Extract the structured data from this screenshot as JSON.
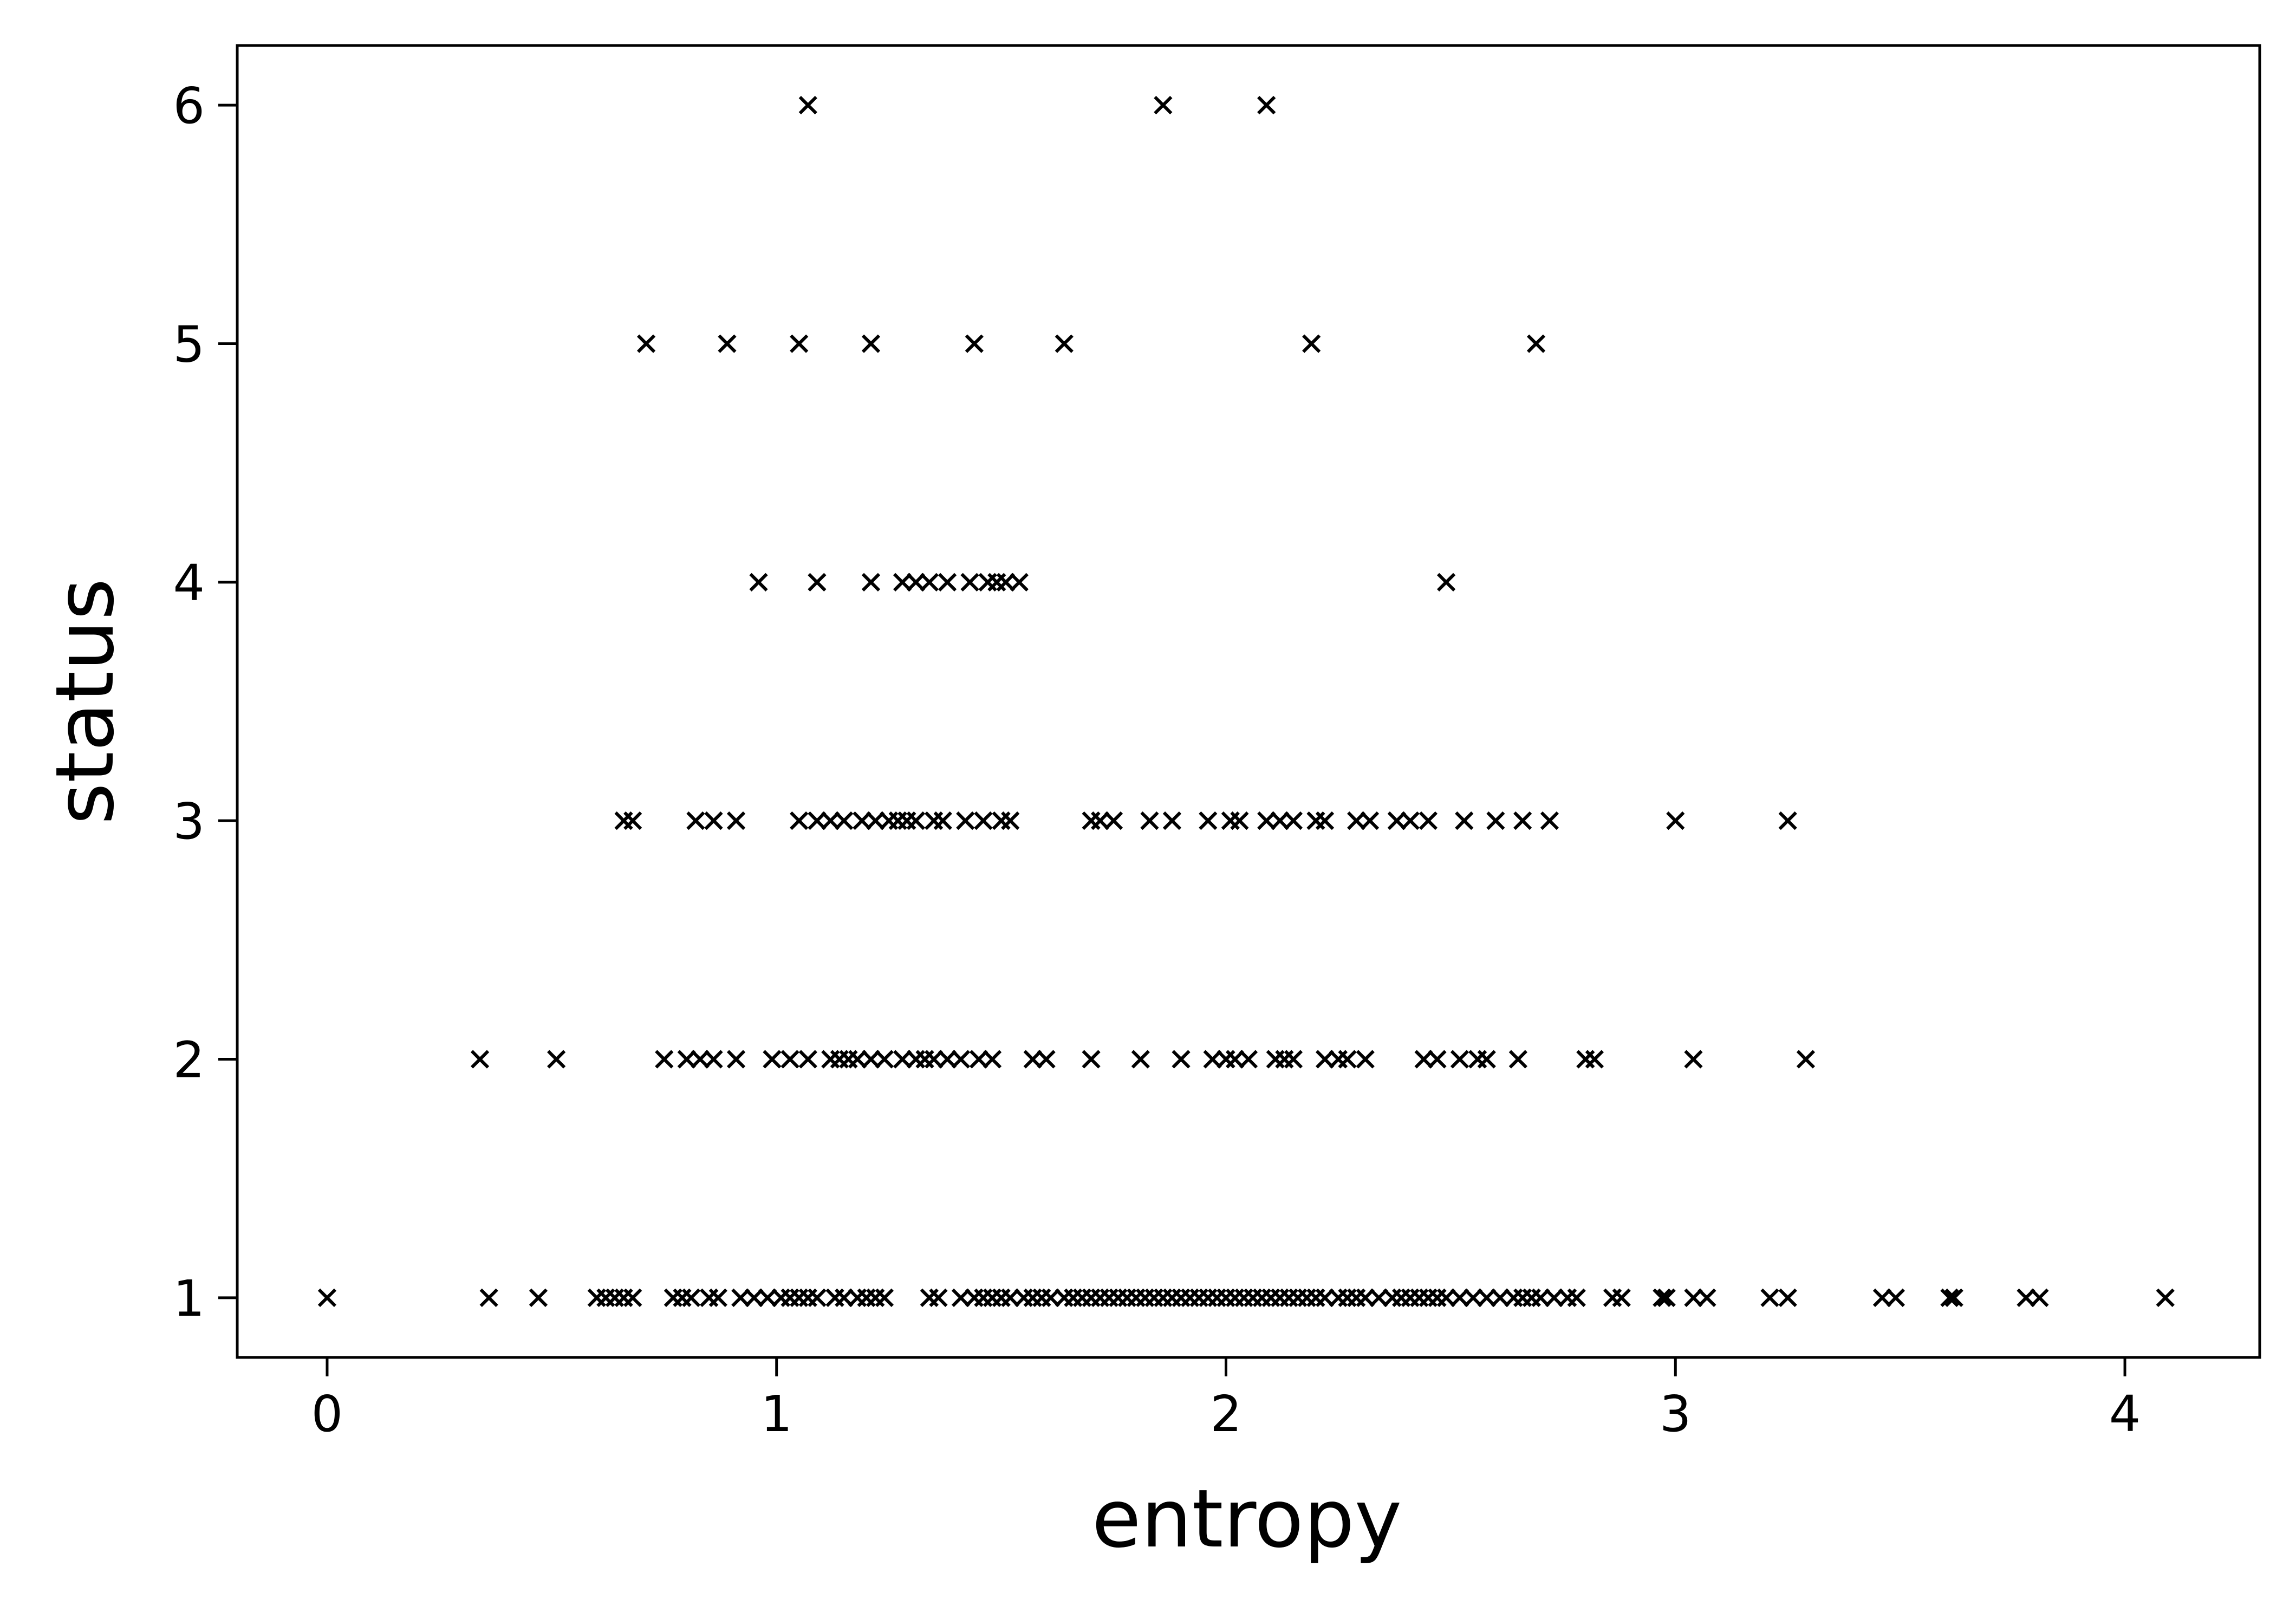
{
  "chart_data": {
    "type": "scatter",
    "title": "",
    "xlabel": "entropy",
    "ylabel": "status",
    "xlim": [
      -0.2,
      4.3
    ],
    "ylim": [
      0.75,
      6.25
    ],
    "xticks": [
      0,
      1,
      2,
      3,
      4
    ],
    "yticks": [
      1,
      2,
      3,
      4,
      5,
      6
    ],
    "grid": false,
    "legend": "none",
    "marker": "x",
    "color": "#000000",
    "points": [
      {
        "x": 1.07,
        "y": 6
      },
      {
        "x": 1.86,
        "y": 6
      },
      {
        "x": 2.09,
        "y": 6
      },
      {
        "x": 0.71,
        "y": 5
      },
      {
        "x": 0.89,
        "y": 5
      },
      {
        "x": 1.05,
        "y": 5
      },
      {
        "x": 1.21,
        "y": 5
      },
      {
        "x": 1.44,
        "y": 5
      },
      {
        "x": 1.64,
        "y": 5
      },
      {
        "x": 2.19,
        "y": 5
      },
      {
        "x": 2.69,
        "y": 5
      },
      {
        "x": 0.96,
        "y": 4
      },
      {
        "x": 1.09,
        "y": 4
      },
      {
        "x": 1.21,
        "y": 4
      },
      {
        "x": 1.28,
        "y": 4
      },
      {
        "x": 1.31,
        "y": 4
      },
      {
        "x": 1.34,
        "y": 4
      },
      {
        "x": 1.38,
        "y": 4
      },
      {
        "x": 1.43,
        "y": 4
      },
      {
        "x": 1.47,
        "y": 4
      },
      {
        "x": 1.49,
        "y": 4
      },
      {
        "x": 1.51,
        "y": 4
      },
      {
        "x": 1.54,
        "y": 4
      },
      {
        "x": 2.49,
        "y": 4
      },
      {
        "x": 0.66,
        "y": 3
      },
      {
        "x": 0.68,
        "y": 3
      },
      {
        "x": 0.82,
        "y": 3
      },
      {
        "x": 0.86,
        "y": 3
      },
      {
        "x": 0.91,
        "y": 3
      },
      {
        "x": 1.05,
        "y": 3
      },
      {
        "x": 1.09,
        "y": 3
      },
      {
        "x": 1.12,
        "y": 3
      },
      {
        "x": 1.15,
        "y": 3
      },
      {
        "x": 1.19,
        "y": 3
      },
      {
        "x": 1.22,
        "y": 3
      },
      {
        "x": 1.25,
        "y": 3
      },
      {
        "x": 1.27,
        "y": 3
      },
      {
        "x": 1.29,
        "y": 3
      },
      {
        "x": 1.31,
        "y": 3
      },
      {
        "x": 1.35,
        "y": 3
      },
      {
        "x": 1.37,
        "y": 3
      },
      {
        "x": 1.42,
        "y": 3
      },
      {
        "x": 1.46,
        "y": 3
      },
      {
        "x": 1.5,
        "y": 3
      },
      {
        "x": 1.52,
        "y": 3
      },
      {
        "x": 1.7,
        "y": 3
      },
      {
        "x": 1.72,
        "y": 3
      },
      {
        "x": 1.75,
        "y": 3
      },
      {
        "x": 1.83,
        "y": 3
      },
      {
        "x": 1.88,
        "y": 3
      },
      {
        "x": 1.96,
        "y": 3
      },
      {
        "x": 2.01,
        "y": 3
      },
      {
        "x": 2.03,
        "y": 3
      },
      {
        "x": 2.09,
        "y": 3
      },
      {
        "x": 2.12,
        "y": 3
      },
      {
        "x": 2.15,
        "y": 3
      },
      {
        "x": 2.22,
        "y": 3
      },
      {
        "x": 2.2,
        "y": 3
      },
      {
        "x": 2.29,
        "y": 3
      },
      {
        "x": 2.32,
        "y": 3
      },
      {
        "x": 2.38,
        "y": 3
      },
      {
        "x": 2.41,
        "y": 3
      },
      {
        "x": 2.45,
        "y": 3
      },
      {
        "x": 2.53,
        "y": 3
      },
      {
        "x": 2.6,
        "y": 3
      },
      {
        "x": 2.66,
        "y": 3
      },
      {
        "x": 2.72,
        "y": 3
      },
      {
        "x": 3.0,
        "y": 3
      },
      {
        "x": 3.25,
        "y": 3
      },
      {
        "x": 0.34,
        "y": 2
      },
      {
        "x": 0.51,
        "y": 2
      },
      {
        "x": 0.75,
        "y": 2
      },
      {
        "x": 0.8,
        "y": 2
      },
      {
        "x": 0.83,
        "y": 2
      },
      {
        "x": 0.86,
        "y": 2
      },
      {
        "x": 0.91,
        "y": 2
      },
      {
        "x": 0.99,
        "y": 2
      },
      {
        "x": 1.03,
        "y": 2
      },
      {
        "x": 1.07,
        "y": 2
      },
      {
        "x": 1.12,
        "y": 2
      },
      {
        "x": 1.14,
        "y": 2
      },
      {
        "x": 1.16,
        "y": 2
      },
      {
        "x": 1.18,
        "y": 2
      },
      {
        "x": 1.21,
        "y": 2
      },
      {
        "x": 1.24,
        "y": 2
      },
      {
        "x": 1.28,
        "y": 2
      },
      {
        "x": 1.31,
        "y": 2
      },
      {
        "x": 1.33,
        "y": 2
      },
      {
        "x": 1.35,
        "y": 2
      },
      {
        "x": 1.38,
        "y": 2
      },
      {
        "x": 1.41,
        "y": 2
      },
      {
        "x": 1.45,
        "y": 2
      },
      {
        "x": 1.48,
        "y": 2
      },
      {
        "x": 1.57,
        "y": 2
      },
      {
        "x": 1.6,
        "y": 2
      },
      {
        "x": 1.7,
        "y": 2
      },
      {
        "x": 1.81,
        "y": 2
      },
      {
        "x": 1.9,
        "y": 2
      },
      {
        "x": 1.97,
        "y": 2
      },
      {
        "x": 2.0,
        "y": 2
      },
      {
        "x": 2.02,
        "y": 2
      },
      {
        "x": 2.05,
        "y": 2
      },
      {
        "x": 2.11,
        "y": 2
      },
      {
        "x": 2.13,
        "y": 2
      },
      {
        "x": 2.15,
        "y": 2
      },
      {
        "x": 2.22,
        "y": 2
      },
      {
        "x": 2.25,
        "y": 2
      },
      {
        "x": 2.27,
        "y": 2
      },
      {
        "x": 2.31,
        "y": 2
      },
      {
        "x": 2.44,
        "y": 2
      },
      {
        "x": 2.47,
        "y": 2
      },
      {
        "x": 2.52,
        "y": 2
      },
      {
        "x": 2.56,
        "y": 2
      },
      {
        "x": 2.58,
        "y": 2
      },
      {
        "x": 2.65,
        "y": 2
      },
      {
        "x": 2.8,
        "y": 2
      },
      {
        "x": 2.82,
        "y": 2
      },
      {
        "x": 3.04,
        "y": 2
      },
      {
        "x": 3.29,
        "y": 2
      },
      {
        "x": 0.0,
        "y": 1
      },
      {
        "x": 0.36,
        "y": 1
      },
      {
        "x": 0.47,
        "y": 1
      },
      {
        "x": 0.6,
        "y": 1
      },
      {
        "x": 0.62,
        "y": 1
      },
      {
        "x": 0.64,
        "y": 1
      },
      {
        "x": 0.66,
        "y": 1
      },
      {
        "x": 0.68,
        "y": 1
      },
      {
        "x": 0.77,
        "y": 1
      },
      {
        "x": 0.79,
        "y": 1
      },
      {
        "x": 0.81,
        "y": 1
      },
      {
        "x": 0.85,
        "y": 1
      },
      {
        "x": 0.87,
        "y": 1
      },
      {
        "x": 0.92,
        "y": 1
      },
      {
        "x": 0.95,
        "y": 1
      },
      {
        "x": 0.98,
        "y": 1
      },
      {
        "x": 1.01,
        "y": 1
      },
      {
        "x": 1.03,
        "y": 1
      },
      {
        "x": 1.05,
        "y": 1
      },
      {
        "x": 1.07,
        "y": 1
      },
      {
        "x": 1.09,
        "y": 1
      },
      {
        "x": 1.13,
        "y": 1
      },
      {
        "x": 1.15,
        "y": 1
      },
      {
        "x": 1.18,
        "y": 1
      },
      {
        "x": 1.2,
        "y": 1
      },
      {
        "x": 1.22,
        "y": 1
      },
      {
        "x": 1.24,
        "y": 1
      },
      {
        "x": 1.34,
        "y": 1
      },
      {
        "x": 1.36,
        "y": 1
      },
      {
        "x": 1.41,
        "y": 1
      },
      {
        "x": 1.44,
        "y": 1
      },
      {
        "x": 1.46,
        "y": 1
      },
      {
        "x": 1.48,
        "y": 1
      },
      {
        "x": 1.5,
        "y": 1
      },
      {
        "x": 1.52,
        "y": 1
      },
      {
        "x": 1.55,
        "y": 1
      },
      {
        "x": 1.57,
        "y": 1
      },
      {
        "x": 1.59,
        "y": 1
      },
      {
        "x": 1.61,
        "y": 1
      },
      {
        "x": 1.64,
        "y": 1
      },
      {
        "x": 1.66,
        "y": 1
      },
      {
        "x": 1.68,
        "y": 1
      },
      {
        "x": 1.7,
        "y": 1
      },
      {
        "x": 1.72,
        "y": 1
      },
      {
        "x": 1.74,
        "y": 1
      },
      {
        "x": 1.76,
        "y": 1
      },
      {
        "x": 1.78,
        "y": 1
      },
      {
        "x": 1.8,
        "y": 1
      },
      {
        "x": 1.82,
        "y": 1
      },
      {
        "x": 1.84,
        "y": 1
      },
      {
        "x": 1.86,
        "y": 1
      },
      {
        "x": 1.88,
        "y": 1
      },
      {
        "x": 1.9,
        "y": 1
      },
      {
        "x": 1.92,
        "y": 1
      },
      {
        "x": 1.94,
        "y": 1
      },
      {
        "x": 1.96,
        "y": 1
      },
      {
        "x": 1.98,
        "y": 1
      },
      {
        "x": 2.0,
        "y": 1
      },
      {
        "x": 2.02,
        "y": 1
      },
      {
        "x": 2.04,
        "y": 1
      },
      {
        "x": 2.06,
        "y": 1
      },
      {
        "x": 2.08,
        "y": 1
      },
      {
        "x": 2.1,
        "y": 1
      },
      {
        "x": 2.12,
        "y": 1
      },
      {
        "x": 2.14,
        "y": 1
      },
      {
        "x": 2.16,
        "y": 1
      },
      {
        "x": 2.18,
        "y": 1
      },
      {
        "x": 2.2,
        "y": 1
      },
      {
        "x": 2.22,
        "y": 1
      },
      {
        "x": 2.25,
        "y": 1
      },
      {
        "x": 2.27,
        "y": 1
      },
      {
        "x": 2.29,
        "y": 1
      },
      {
        "x": 2.31,
        "y": 1
      },
      {
        "x": 2.34,
        "y": 1
      },
      {
        "x": 2.37,
        "y": 1
      },
      {
        "x": 2.39,
        "y": 1
      },
      {
        "x": 2.41,
        "y": 1
      },
      {
        "x": 2.43,
        "y": 1
      },
      {
        "x": 2.45,
        "y": 1
      },
      {
        "x": 2.47,
        "y": 1
      },
      {
        "x": 2.49,
        "y": 1
      },
      {
        "x": 2.52,
        "y": 1
      },
      {
        "x": 2.55,
        "y": 1
      },
      {
        "x": 2.58,
        "y": 1
      },
      {
        "x": 2.61,
        "y": 1
      },
      {
        "x": 2.64,
        "y": 1
      },
      {
        "x": 2.66,
        "y": 1
      },
      {
        "x": 2.68,
        "y": 1
      },
      {
        "x": 2.7,
        "y": 1
      },
      {
        "x": 2.73,
        "y": 1
      },
      {
        "x": 2.76,
        "y": 1
      },
      {
        "x": 2.78,
        "y": 1
      },
      {
        "x": 2.86,
        "y": 1
      },
      {
        "x": 2.88,
        "y": 1
      },
      {
        "x": 2.97,
        "y": 1
      },
      {
        "x": 2.98,
        "y": 1
      },
      {
        "x": 3.04,
        "y": 1
      },
      {
        "x": 3.07,
        "y": 1
      },
      {
        "x": 3.21,
        "y": 1
      },
      {
        "x": 3.25,
        "y": 1
      },
      {
        "x": 3.46,
        "y": 1
      },
      {
        "x": 3.49,
        "y": 1
      },
      {
        "x": 3.61,
        "y": 1
      },
      {
        "x": 3.62,
        "y": 1
      },
      {
        "x": 3.78,
        "y": 1
      },
      {
        "x": 3.81,
        "y": 1
      },
      {
        "x": 4.09,
        "y": 1
      }
    ]
  }
}
